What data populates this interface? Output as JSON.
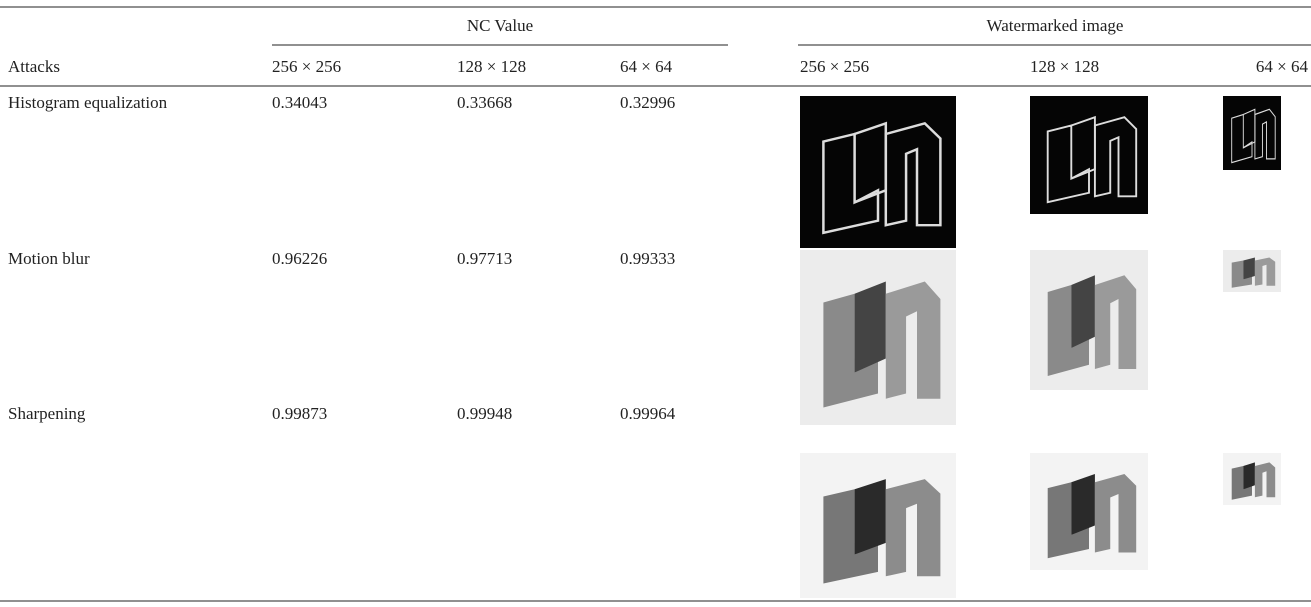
{
  "table": {
    "column_groups": [
      "NC Value",
      "Watermarked image"
    ],
    "headers": [
      "Attacks",
      "256 × 256",
      "128 × 128",
      "64 × 64",
      "256 × 256",
      "128 × 128",
      "64 × 64"
    ],
    "rows": [
      [
        "Histogram equalization",
        0.34043,
        0.33668,
        0.32996
      ],
      [
        "Motion blur",
        0.96226,
        0.97713,
        0.99333
      ],
      [
        "Sharpening",
        0.99873,
        0.99948,
        0.99964
      ]
    ]
  }
}
